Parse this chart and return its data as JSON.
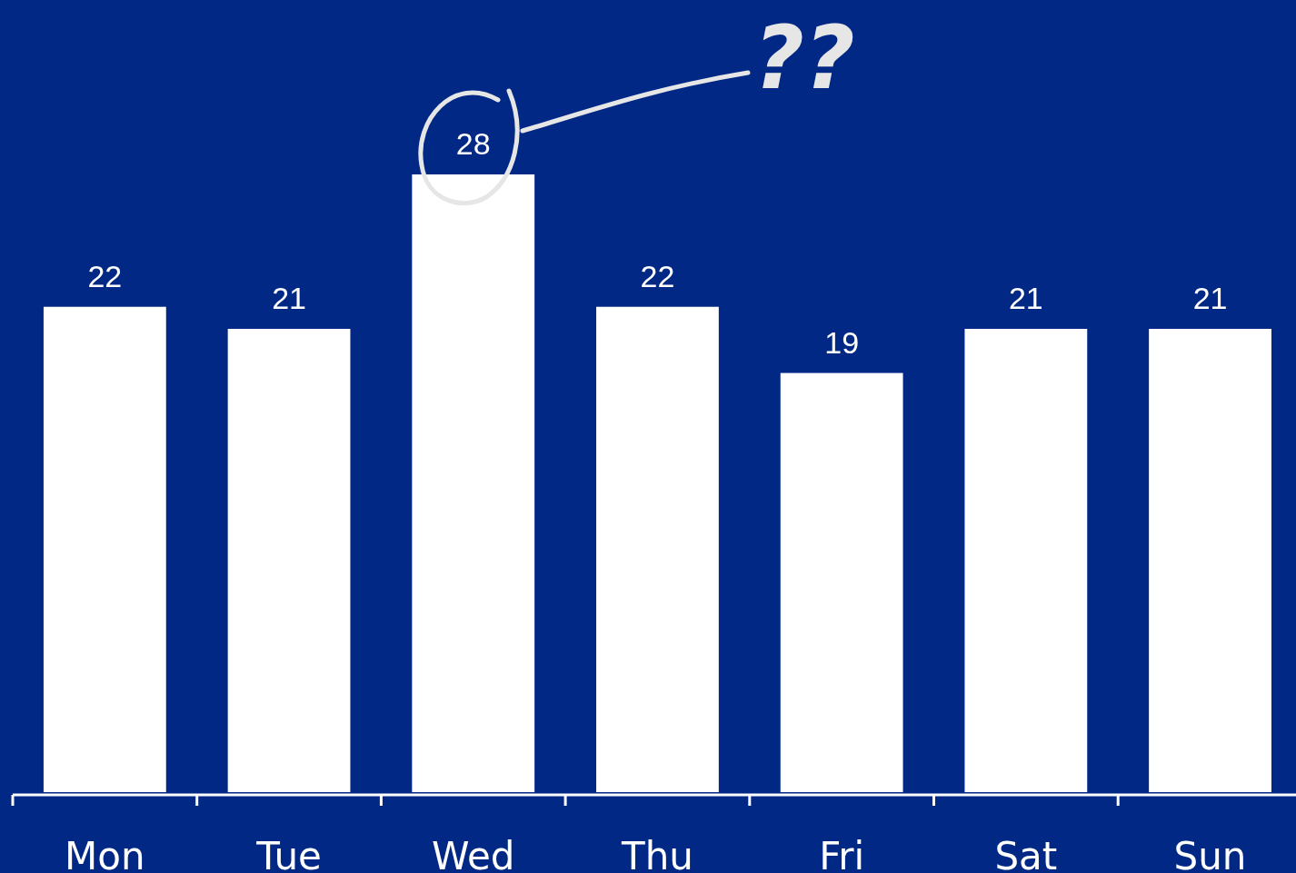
{
  "chart_data": {
    "type": "bar",
    "categories": [
      "Mon",
      "Tue",
      "Wed",
      "Thu",
      "Fri",
      "Sat",
      "Sun"
    ],
    "values": [
      22,
      21,
      28,
      22,
      19,
      21,
      21
    ],
    "color": "#ffffff",
    "data_labels": true,
    "annotations": [
      "??"
    ]
  }
}
